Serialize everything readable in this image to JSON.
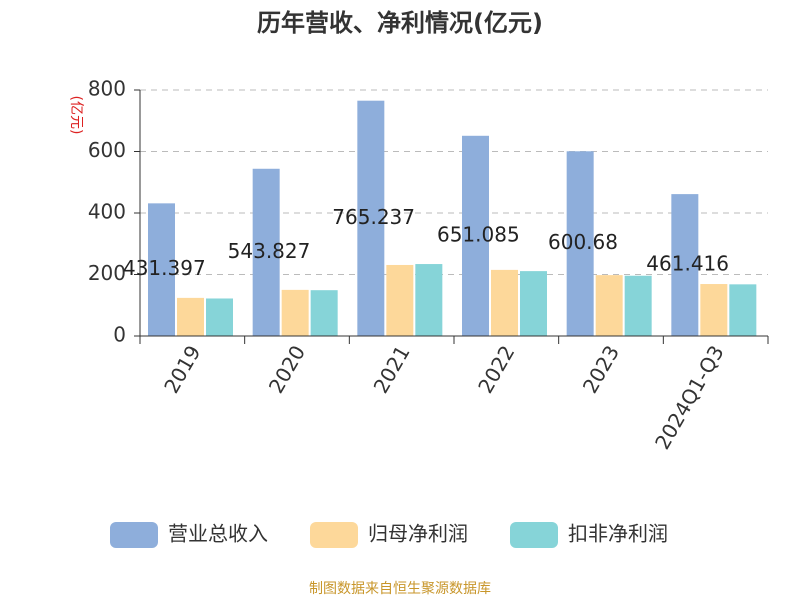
{
  "chart_data": {
    "type": "bar",
    "title": "历年营收、净利情况(亿元)",
    "y_label": "(亿元)",
    "categories": [
      "2019",
      "2020",
      "2021",
      "2022",
      "2023",
      "2024Q1-Q3"
    ],
    "series": [
      {
        "name": "营业总收入",
        "color": "#8eaedb",
        "values": [
          431.397,
          543.827,
          765.237,
          651.085,
          600.68,
          461.416
        ],
        "show_labels": true
      },
      {
        "name": "归母净利润",
        "color": "#fdd89a",
        "values": [
          124,
          150,
          231,
          215,
          198,
          169
        ]
      },
      {
        "name": "扣非净利润",
        "color": "#86d4d8",
        "values": [
          122,
          149,
          234,
          211,
          196,
          168
        ]
      }
    ],
    "ylim": [
      0,
      800
    ],
    "yticks": [
      0,
      200,
      400,
      600,
      800
    ],
    "grid": true,
    "source": "制图数据来自恒生聚源数据库"
  }
}
